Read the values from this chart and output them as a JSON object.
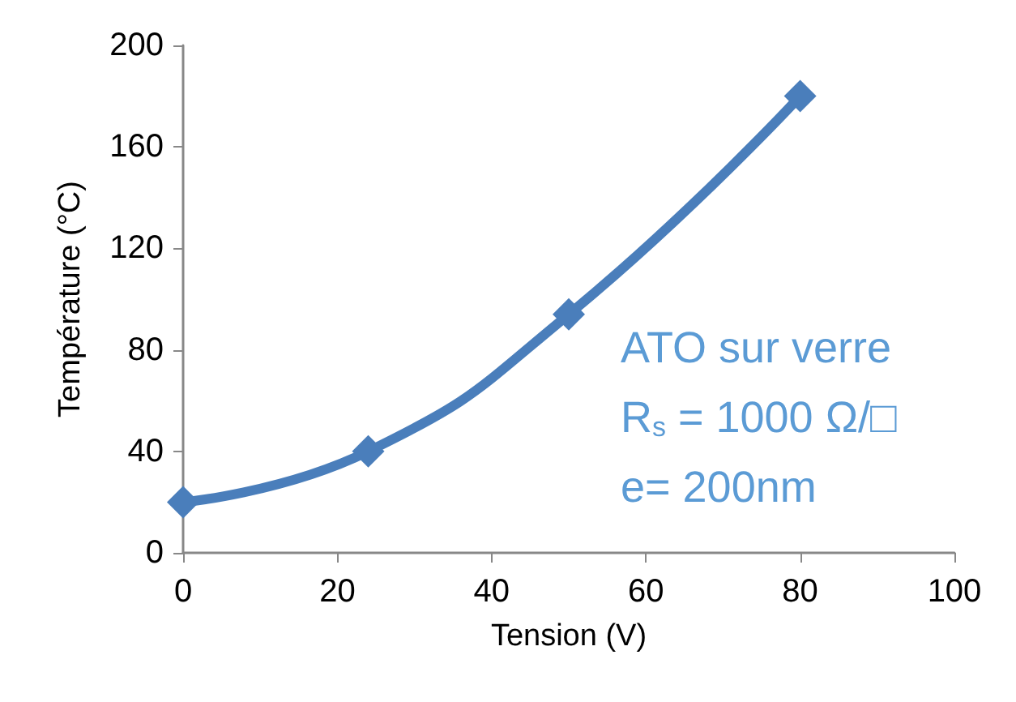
{
  "chart_data": {
    "type": "line",
    "xlabel": "Tension (V)",
    "ylabel": "Température (°C)",
    "x": [
      0,
      24,
      50,
      80
    ],
    "series": [
      {
        "color": "#4a7ebb",
        "values": [
          20,
          40,
          94,
          180
        ]
      }
    ],
    "xlim": [
      0,
      100
    ],
    "xticks": [
      0,
      20,
      40,
      60,
      80,
      100
    ],
    "ylim": [
      0,
      200
    ],
    "yticks": [
      0,
      40,
      80,
      120,
      160,
      200
    ],
    "marker": "diamond",
    "line_style": "solid",
    "grid": false,
    "annotations": [
      "ATO sur verre",
      "R$_{s}$ = 1000 Ω/□",
      "e= 200nm"
    ]
  }
}
